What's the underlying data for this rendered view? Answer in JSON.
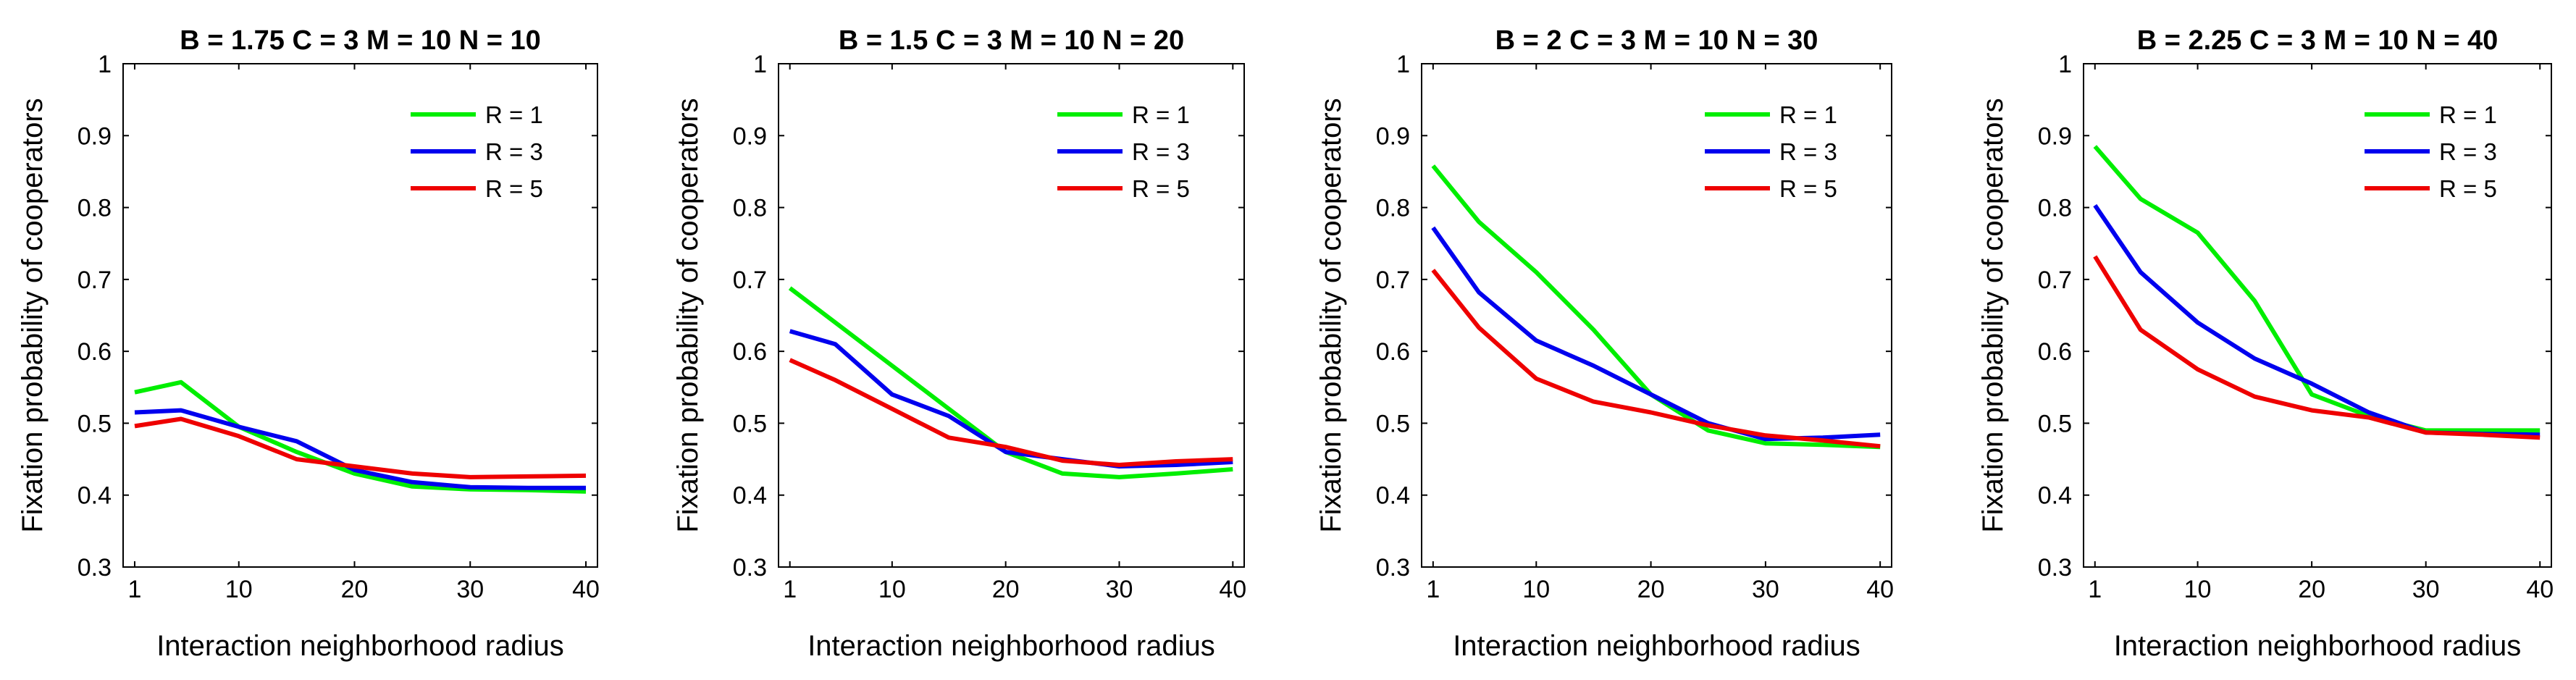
{
  "chart_data": [
    {
      "type": "line",
      "title": "B = 1.75   C = 3   M = 10   N = 10",
      "xlabel": "Interaction neighborhood radius",
      "ylabel": "Fixation probability of cooperators",
      "xlim": [
        0,
        41
      ],
      "ylim": [
        0.3,
        1
      ],
      "xticks": [
        1,
        10,
        20,
        30,
        40
      ],
      "yticks": [
        0.3,
        0.4,
        0.5,
        0.6,
        0.7,
        0.8,
        0.9,
        1
      ],
      "ytick_labels": [
        "0.3",
        "0.4",
        "0.5",
        "0.6",
        "0.7",
        "0.8",
        "0.9",
        "1"
      ],
      "x": [
        1,
        5,
        10,
        15,
        20,
        25,
        30,
        35,
        40
      ],
      "legend_position": "top-right",
      "series": [
        {
          "name": "R = 1",
          "color": "#00ee00",
          "values": [
            0.543,
            0.557,
            0.495,
            0.46,
            0.43,
            0.412,
            0.408,
            0.407,
            0.405
          ]
        },
        {
          "name": "R = 3",
          "color": "#0000ee",
          "values": [
            0.515,
            0.518,
            0.495,
            0.475,
            0.435,
            0.418,
            0.411,
            0.41,
            0.41
          ]
        },
        {
          "name": "R = 5",
          "color": "#ee0000",
          "values": [
            0.496,
            0.506,
            0.482,
            0.45,
            0.44,
            0.43,
            0.425,
            0.426,
            0.427
          ]
        }
      ]
    },
    {
      "type": "line",
      "title": "B = 1.5   C = 3   M = 10   N = 20",
      "xlabel": "Interaction neighborhood radius",
      "ylabel": "Fixation probability of cooperators",
      "xlim": [
        0,
        41
      ],
      "ylim": [
        0.3,
        1
      ],
      "xticks": [
        1,
        10,
        20,
        30,
        40
      ],
      "yticks": [
        0.3,
        0.4,
        0.5,
        0.6,
        0.7,
        0.8,
        0.9,
        1
      ],
      "ytick_labels": [
        "0.3",
        "0.4",
        "0.5",
        "0.6",
        "0.7",
        "0.8",
        "0.9",
        "1"
      ],
      "x": [
        1,
        5,
        10,
        15,
        20,
        25,
        30,
        35,
        40
      ],
      "legend_position": "top-right",
      "series": [
        {
          "name": "R = 1",
          "color": "#00ee00",
          "values": [
            0.688,
            0.64,
            0.58,
            0.52,
            0.46,
            0.43,
            0.425,
            0.43,
            0.436
          ]
        },
        {
          "name": "R = 3",
          "color": "#0000ee",
          "values": [
            0.628,
            0.61,
            0.54,
            0.51,
            0.46,
            0.45,
            0.44,
            0.442,
            0.446
          ]
        },
        {
          "name": "R = 5",
          "color": "#ee0000",
          "values": [
            0.588,
            0.56,
            0.52,
            0.48,
            0.467,
            0.448,
            0.442,
            0.447,
            0.45
          ]
        }
      ]
    },
    {
      "type": "line",
      "title": "B = 2   C = 3   M = 10   N = 30",
      "xlabel": "Interaction neighborhood radius",
      "ylabel": "Fixation probability of cooperators",
      "xlim": [
        0,
        41
      ],
      "ylim": [
        0.3,
        1
      ],
      "xticks": [
        1,
        10,
        20,
        30,
        40
      ],
      "yticks": [
        0.3,
        0.4,
        0.5,
        0.6,
        0.7,
        0.8,
        0.9,
        1
      ],
      "ytick_labels": [
        "0.3",
        "0.4",
        "0.5",
        "0.6",
        "0.7",
        "0.8",
        "0.9",
        "1"
      ],
      "x": [
        1,
        5,
        10,
        15,
        20,
        25,
        30,
        35,
        40
      ],
      "legend_position": "top-right",
      "series": [
        {
          "name": "R = 1",
          "color": "#00ee00",
          "values": [
            0.858,
            0.78,
            0.71,
            0.63,
            0.54,
            0.49,
            0.472,
            0.47,
            0.467
          ]
        },
        {
          "name": "R = 3",
          "color": "#0000ee",
          "values": [
            0.772,
            0.682,
            0.615,
            0.58,
            0.54,
            0.5,
            0.478,
            0.48,
            0.484
          ]
        },
        {
          "name": "R = 5",
          "color": "#ee0000",
          "values": [
            0.713,
            0.633,
            0.562,
            0.53,
            0.515,
            0.497,
            0.483,
            0.476,
            0.468
          ]
        }
      ]
    },
    {
      "type": "line",
      "title": "B = 2.25   C = 3   M = 10   N = 40",
      "xlabel": "Interaction neighborhood radius",
      "ylabel": "Fixation probability of cooperators",
      "xlim": [
        0,
        41
      ],
      "ylim": [
        0.3,
        1
      ],
      "xticks": [
        1,
        10,
        20,
        30,
        40
      ],
      "yticks": [
        0.3,
        0.4,
        0.5,
        0.6,
        0.7,
        0.8,
        0.9,
        1
      ],
      "ytick_labels": [
        "0.3",
        "0.4",
        "0.5",
        "0.6",
        "0.7",
        "0.8",
        "0.9",
        "1"
      ],
      "x": [
        1,
        5,
        10,
        15,
        20,
        25,
        30,
        35,
        40
      ],
      "legend_position": "top-right",
      "series": [
        {
          "name": "R = 1",
          "color": "#00ee00",
          "values": [
            0.885,
            0.812,
            0.765,
            0.67,
            0.54,
            0.51,
            0.49,
            0.49,
            0.49
          ]
        },
        {
          "name": "R = 3",
          "color": "#0000ee",
          "values": [
            0.803,
            0.71,
            0.64,
            0.59,
            0.555,
            0.515,
            0.487,
            0.485,
            0.484
          ]
        },
        {
          "name": "R = 5",
          "color": "#ee0000",
          "values": [
            0.732,
            0.63,
            0.575,
            0.537,
            0.518,
            0.508,
            0.487,
            0.484,
            0.48
          ]
        }
      ]
    }
  ]
}
